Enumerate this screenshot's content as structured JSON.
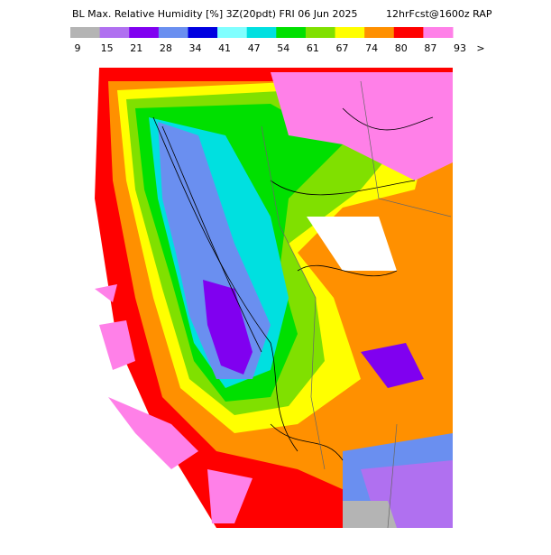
{
  "header": {
    "title": "BL Max. Relative Humidity [%] 3Z(20pdt) FRI 06 Jun 2025",
    "subtitle": "12hrFcst@1600z RAP"
  },
  "legend": {
    "labels": [
      "9",
      "15",
      "21",
      "28",
      "34",
      "41",
      "47",
      "54",
      "61",
      "67",
      "74",
      "80",
      "87",
      "93"
    ],
    "overflow": ">",
    "colors": [
      "#b4b4b4",
      "#b070f0",
      "#8000f0",
      "#6a8ff0",
      "#0000e0",
      "#80ffff",
      "#00e0e0",
      "#00e000",
      "#80e000",
      "#ffff00",
      "#ff9000",
      "#ff0000",
      "#ff80e8"
    ]
  }
}
